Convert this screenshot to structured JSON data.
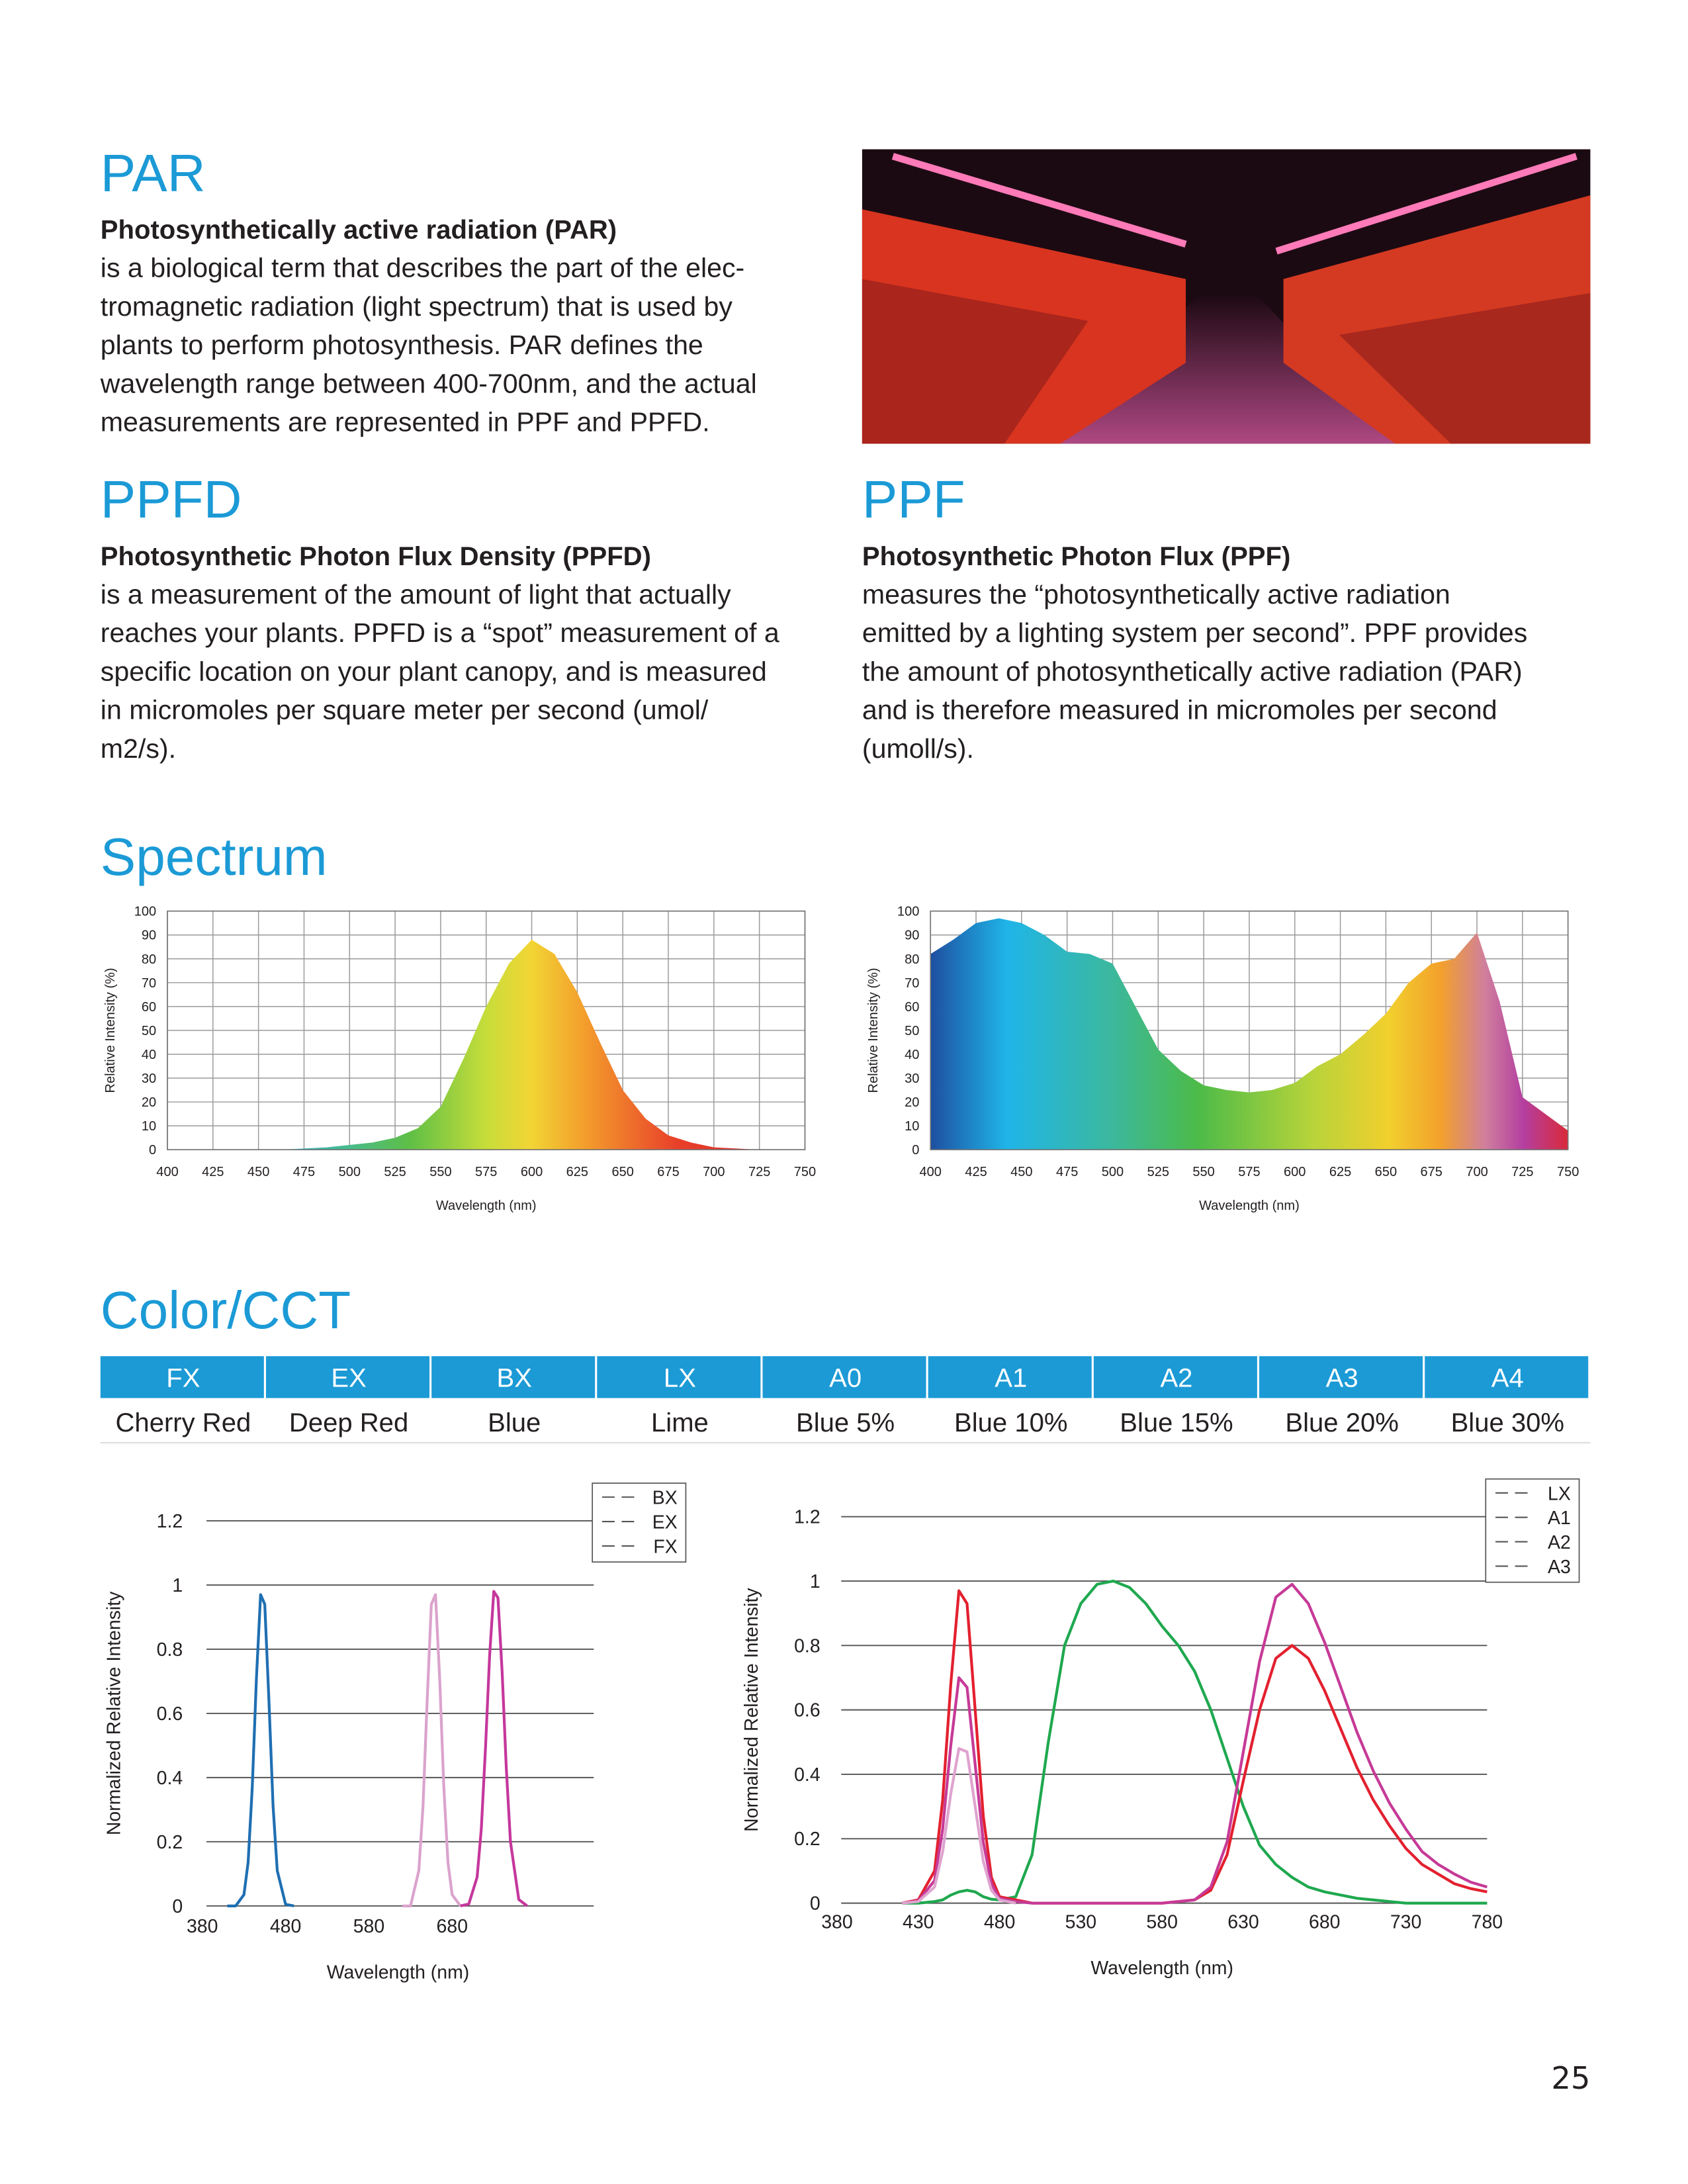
{
  "par": {
    "title": "PAR",
    "subtitle": "Photosynthetically active radiation (PAR)",
    "lines": [
      "is a biological term that describes the part of the elec-",
      "tromagnetic radiation (light spectrum) that is used by",
      "plants to perform photosynthesis. PAR defines the",
      "wavelength range between 400-700nm, and the actual",
      "measurements are represented in PPF and PPFD."
    ]
  },
  "ppfd": {
    "title": "PPFD",
    "subtitle": "Photosynthetic Photon Flux Density (PPFD)",
    "lines": [
      "is a measurement of the amount of light that actually",
      "reaches your plants. PPFD is a “spot” measurement of a",
      "specific location on your plant canopy, and is measured",
      "in micromoles per square meter per second (umol/",
      "m2/s)."
    ]
  },
  "ppf": {
    "title": "PPF",
    "subtitle": "Photosynthetic Photon Flux (PPF)",
    "lines": [
      "measures the “photosynthetically active radiation",
      "emitted by a lighting system per second”. PPF provides",
      "the amount of photosynthetically active radiation (PAR)",
      "and is therefore measured in micromoles per second",
      "(umoll/s)."
    ]
  },
  "spectrum": {
    "title": "Spectrum"
  },
  "color_cct": {
    "title": "Color/CCT",
    "table": {
      "header": [
        "FX",
        "EX",
        "BX",
        "LX",
        "A0",
        "A1",
        "A2",
        "A3",
        "A4"
      ],
      "rows": [
        [
          "Cherry Red",
          "Deep Red",
          "Blue",
          "Lime",
          "Blue 5%",
          "Blue 10%",
          "Blue 15%",
          "Blue 20%",
          "Blue 30%"
        ]
      ]
    }
  },
  "page_number": "25",
  "chart_data": [
    {
      "type": "area",
      "xlabel": "Wavelength (nm)",
      "ylabel": "Relative Intensity (%)",
      "grid": "both",
      "fill": "spec1",
      "x": [
        400,
        412.5,
        425,
        437.5,
        450,
        462.5,
        475,
        487.5,
        500,
        512.5,
        525,
        537.5,
        550,
        562.5,
        575,
        587.5,
        600,
        612.5,
        625,
        637.5,
        650,
        662.5,
        675,
        687.5,
        700,
        712.5,
        725,
        737.5,
        750
      ],
      "values": [
        0,
        0,
        0,
        0,
        0,
        0,
        0.5,
        1,
        2,
        3,
        5,
        9,
        18,
        38,
        60,
        78,
        88,
        82,
        66,
        45,
        25,
        13,
        6,
        3,
        1,
        0.5,
        0,
        0,
        0
      ],
      "xlim": [
        400,
        750
      ],
      "xticks": [
        400,
        425,
        450,
        475,
        500,
        525,
        550,
        575,
        600,
        625,
        650,
        675,
        700,
        725,
        750
      ],
      "ylim": [
        0,
        100
      ],
      "yticks": [
        0,
        10,
        20,
        30,
        40,
        50,
        60,
        70,
        80,
        90,
        100
      ]
    },
    {
      "type": "area",
      "xlabel": "Wavelength (nm)",
      "ylabel": "Relative Intensity (%)",
      "grid": "both",
      "fill": "spec2",
      "x": [
        400,
        412.5,
        425,
        437.5,
        450,
        462.5,
        475,
        487.5,
        500,
        512.5,
        525,
        537.5,
        550,
        562.5,
        575,
        587.5,
        600,
        612.5,
        625,
        637.5,
        650,
        662.5,
        675,
        687.5,
        700,
        712.5,
        725,
        737.5,
        750
      ],
      "values": [
        82,
        88,
        95,
        97,
        95,
        90,
        83,
        82,
        78,
        60,
        42,
        33,
        27,
        25,
        24,
        25,
        28,
        35,
        40,
        48,
        57,
        70,
        78,
        80,
        91,
        62,
        22,
        15,
        8
      ],
      "xlim": [
        400,
        750
      ],
      "xticks": [
        400,
        425,
        450,
        475,
        500,
        525,
        550,
        575,
        600,
        625,
        650,
        675,
        700,
        725,
        750
      ],
      "ylim": [
        0,
        100
      ],
      "yticks": [
        0,
        10,
        20,
        30,
        40,
        50,
        60,
        70,
        80,
        90,
        100
      ]
    },
    {
      "type": "line",
      "xlabel": "Wavelength (nm)",
      "ylabel": "Normalized Relative Intensity",
      "grid": "y",
      "legend": "upper right",
      "x": [
        410,
        420,
        430,
        435,
        440,
        445,
        450,
        455,
        460,
        465,
        470,
        480,
        490,
        620,
        630,
        640,
        645,
        650,
        655,
        660,
        665,
        670,
        675,
        680,
        690,
        700,
        710,
        715,
        720,
        725,
        730,
        735,
        740,
        745,
        750,
        760,
        770
      ],
      "series": [
        {
          "name": "BX",
          "color": "#1f6fb2",
          "values": [
            0,
            0,
            0.035,
            0.135,
            0.37,
            0.71,
            0.97,
            0.94,
            0.64,
            0.31,
            0.11,
            0.005,
            0,
            null,
            null,
            null,
            null,
            null,
            null,
            null,
            null,
            null,
            null,
            null,
            null,
            null,
            null,
            null,
            null,
            null,
            null,
            null,
            null,
            null,
            null,
            null,
            null
          ]
        },
        {
          "name": "EX",
          "color": "#dba3cd",
          "values": [
            null,
            null,
            null,
            null,
            null,
            null,
            null,
            null,
            null,
            null,
            null,
            null,
            null,
            0,
            0,
            0.11,
            0.31,
            0.64,
            0.94,
            0.97,
            0.71,
            0.37,
            0.135,
            0.035,
            0,
            null,
            null,
            null,
            null,
            null,
            null,
            null,
            null,
            null,
            null,
            null,
            null
          ]
        },
        {
          "name": "FX",
          "color": "#c5379c",
          "values": [
            null,
            null,
            null,
            null,
            null,
            null,
            null,
            null,
            null,
            null,
            null,
            null,
            null,
            null,
            null,
            null,
            null,
            null,
            null,
            null,
            null,
            null,
            null,
            null,
            0,
            0.006,
            0.09,
            0.24,
            0.49,
            0.78,
            0.98,
            0.96,
            0.73,
            0.43,
            0.2,
            0.02,
            0
          ]
        }
      ],
      "xlim": [
        380,
        850
      ],
      "xticks": [
        380,
        480,
        580,
        680
      ],
      "ylim": [
        0,
        1.2
      ],
      "yticks": [
        0,
        0.2,
        0.4,
        0.6,
        0.8,
        1,
        1.2
      ]
    },
    {
      "type": "line",
      "xlabel": "Wavelength (nm)",
      "ylabel": "Normalized Relative Intensity",
      "grid": "y",
      "legend": "upper right",
      "x": [
        420,
        430,
        440,
        445,
        450,
        455,
        460,
        465,
        470,
        475,
        480,
        490,
        500,
        510,
        520,
        530,
        540,
        550,
        560,
        570,
        580,
        590,
        600,
        610,
        620,
        630,
        640,
        650,
        660,
        670,
        680,
        690,
        700,
        710,
        720,
        730,
        740,
        750,
        760,
        770,
        780
      ],
      "series": [
        {
          "name": "LX",
          "color": "#1fa84f",
          "values": [
            0,
            0,
            0.005,
            0.01,
            0.025,
            0.035,
            0.04,
            0.035,
            0.02,
            0.012,
            0.01,
            0.02,
            0.15,
            0.5,
            0.8,
            0.93,
            0.99,
            1,
            0.98,
            0.93,
            0.86,
            0.8,
            0.72,
            0.6,
            0.45,
            0.3,
            0.18,
            0.12,
            0.08,
            0.05,
            0.035,
            0.025,
            0.015,
            0.01,
            0.005,
            0,
            0,
            0,
            0,
            0,
            0
          ]
        },
        {
          "name": "A1",
          "color": "#e3202f",
          "values": [
            0,
            0.01,
            0.1,
            0.32,
            0.68,
            0.97,
            0.93,
            0.6,
            0.27,
            0.08,
            0.02,
            0.01,
            0,
            0,
            0,
            0,
            0,
            0,
            0,
            0,
            0,
            0.005,
            0.01,
            0.04,
            0.15,
            0.38,
            0.6,
            0.76,
            0.8,
            0.76,
            0.66,
            0.54,
            0.42,
            0.32,
            0.24,
            0.17,
            0.12,
            0.09,
            0.06,
            0.045,
            0.035
          ]
        },
        {
          "name": "A2",
          "color": "#c63a97",
          "values": [
            0,
            0.007,
            0.07,
            0.23,
            0.49,
            0.7,
            0.67,
            0.43,
            0.19,
            0.06,
            0.015,
            0.005,
            0,
            0,
            0,
            0,
            0,
            0,
            0,
            0,
            0,
            0.005,
            0.01,
            0.05,
            0.19,
            0.47,
            0.75,
            0.95,
            0.99,
            0.93,
            0.81,
            0.67,
            0.53,
            0.41,
            0.31,
            0.23,
            0.16,
            0.12,
            0.09,
            0.065,
            0.05
          ]
        },
        {
          "name": "A3",
          "color": "#dfa3cf",
          "values": [
            0,
            0.005,
            0.05,
            0.16,
            0.34,
            0.48,
            0.47,
            0.3,
            0.13,
            0.04,
            0.01,
            0,
            null,
            null,
            null,
            null,
            null,
            null,
            null,
            null,
            null,
            null,
            null,
            null,
            null,
            null,
            null,
            null,
            null,
            null,
            null,
            null,
            null,
            null,
            null,
            null,
            null,
            null,
            null,
            null,
            null
          ]
        }
      ],
      "xlim": [
        380,
        780
      ],
      "xticks": [
        380,
        430,
        480,
        530,
        580,
        630,
        680,
        730,
        780
      ],
      "ylim": [
        0,
        1.2
      ],
      "yticks": [
        0,
        0.2,
        0.4,
        0.6,
        0.8,
        1,
        1.2
      ]
    }
  ]
}
